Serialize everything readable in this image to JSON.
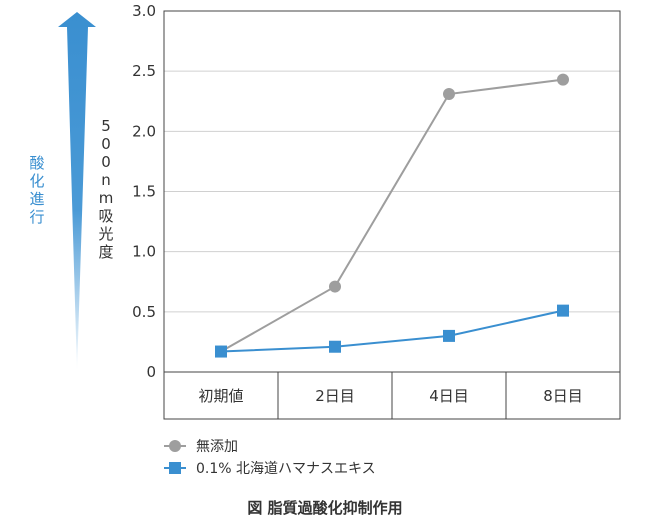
{
  "chart_data": {
    "type": "line",
    "categories": [
      "初期値",
      "2日目",
      "4日目",
      "8日目"
    ],
    "series": [
      {
        "name": "無添加",
        "values": [
          0.17,
          0.71,
          2.31,
          2.43
        ],
        "color": "#9e9e9e",
        "marker": "circle"
      },
      {
        "name": "0.1% 北海道ハマナスエキス",
        "values": [
          0.17,
          0.21,
          0.3,
          0.51
        ],
        "color": "#3a8fd0",
        "marker": "square"
      }
    ],
    "ylim": [
      0,
      3.0
    ],
    "yticks": [
      "0",
      "0.5",
      "1.0",
      "1.5",
      "2.0",
      "2.5",
      "3.0"
    ],
    "ylabel": "500nm吸光度",
    "arrow_label": "酸化進行",
    "arrow_color": "#3a8fd0",
    "grid": true,
    "legend": "bottom-left",
    "caption": "図 脂質過酸化抑制作用"
  }
}
